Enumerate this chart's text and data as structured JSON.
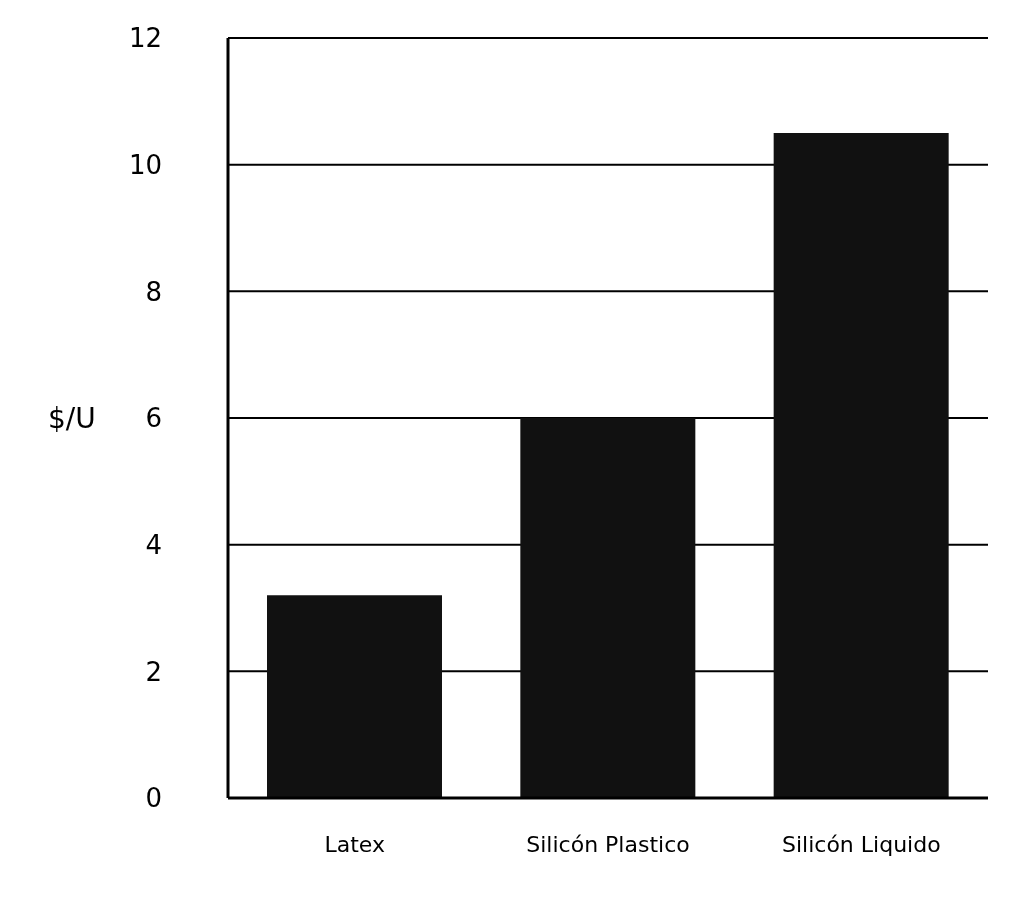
{
  "chart_data": {
    "type": "bar",
    "ylabel": "$/U",
    "categories": [
      "Latex",
      "Silicón Plastico",
      "Silicón Liquido"
    ],
    "values": [
      3.2,
      6.0,
      10.5
    ],
    "color": "#111111",
    "ylim": [
      0,
      12
    ],
    "yticks": [
      0,
      2,
      4,
      6,
      8,
      10,
      12
    ],
    "grid": "y"
  }
}
